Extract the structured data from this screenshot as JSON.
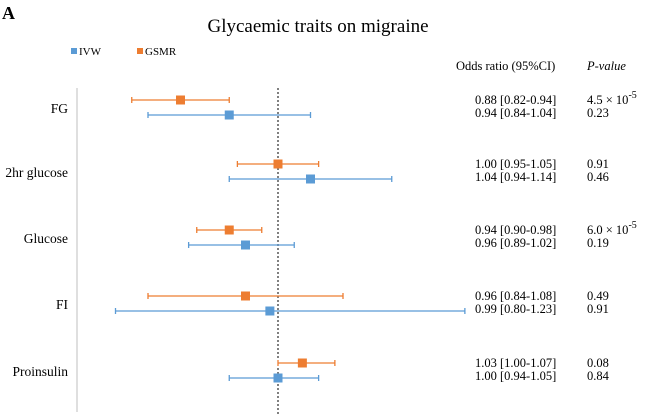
{
  "chart_data": {
    "type": "forest",
    "panel_label": "A",
    "title": "Glycaemic traits on migraine",
    "reference_line": 1.0,
    "xlim": [
      0.78,
      1.26
    ],
    "legend": {
      "placement": "top-left",
      "entries": [
        {
          "name": "IVW",
          "color": "#5B9BD5"
        },
        {
          "name": "GSMR",
          "color": "#ED7D31"
        }
      ]
    },
    "columns": {
      "or_header": "Odds ratio (95%CI)",
      "p_header": "P-value"
    },
    "categories": [
      "FG",
      "2hr glucose",
      "Glucose",
      "FI",
      "Proinsulin"
    ],
    "series": [
      {
        "name": "GSMR",
        "color": "#ED7D31",
        "points": [
          {
            "or": 0.88,
            "lo": 0.82,
            "hi": 0.94,
            "or_text": "0.88 [0.82-0.94]",
            "p_base": "4.5 × 10",
            "p_exp": "-5"
          },
          {
            "or": 1.0,
            "lo": 0.95,
            "hi": 1.05,
            "or_text": "1.00 [0.95-1.05]",
            "p_base": "0.91",
            "p_exp": ""
          },
          {
            "or": 0.94,
            "lo": 0.9,
            "hi": 0.98,
            "or_text": "0.94 [0.90-0.98]",
            "p_base": "6.0 × 10",
            "p_exp": "-5"
          },
          {
            "or": 0.96,
            "lo": 0.84,
            "hi": 1.08,
            "or_text": "0.96 [0.84-1.08]",
            "p_base": "0.49",
            "p_exp": ""
          },
          {
            "or": 1.03,
            "lo": 1.0,
            "hi": 1.07,
            "or_text": "1.03 [1.00-1.07]",
            "p_base": "0.08",
            "p_exp": ""
          }
        ]
      },
      {
        "name": "IVW",
        "color": "#5B9BD5",
        "points": [
          {
            "or": 0.94,
            "lo": 0.84,
            "hi": 1.04,
            "or_text": "0.94 [0.84-1.04]",
            "p_base": "0.23",
            "p_exp": ""
          },
          {
            "or": 1.04,
            "lo": 0.94,
            "hi": 1.14,
            "or_text": "1.04 [0.94-1.14]",
            "p_base": "0.46",
            "p_exp": ""
          },
          {
            "or": 0.96,
            "lo": 0.89,
            "hi": 1.02,
            "or_text": "0.96 [0.89-1.02]",
            "p_base": "0.19",
            "p_exp": ""
          },
          {
            "or": 0.99,
            "lo": 0.8,
            "hi": 1.23,
            "or_text": "0.99 [0.80-1.23]",
            "p_base": "0.91",
            "p_exp": ""
          },
          {
            "or": 1.0,
            "lo": 0.94,
            "hi": 1.05,
            "or_text": "1.00 [0.94-1.05]",
            "p_base": "0.84",
            "p_exp": ""
          }
        ]
      }
    ]
  }
}
